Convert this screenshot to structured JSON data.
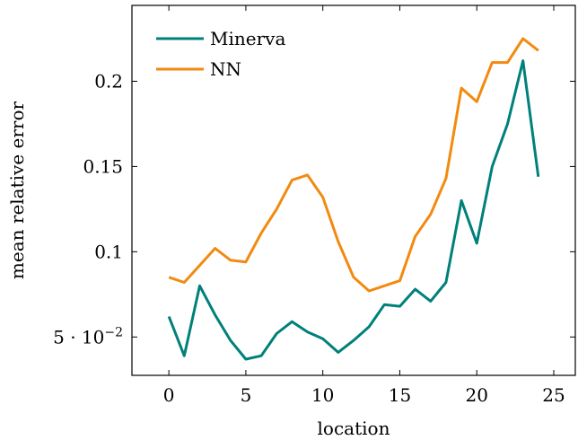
{
  "chart_data": {
    "type": "line",
    "title": "",
    "xlabel": "location",
    "ylabel": "mean relative error",
    "xlim": [
      -2.4,
      26.4
    ],
    "ylim": [
      0.0275,
      0.2445
    ],
    "xticks": [
      {
        "value": 0,
        "label": "0"
      },
      {
        "value": 5,
        "label": "5"
      },
      {
        "value": 10,
        "label": "10"
      },
      {
        "value": 15,
        "label": "15"
      },
      {
        "value": 20,
        "label": "20"
      },
      {
        "value": 25,
        "label": "25"
      }
    ],
    "yticks": [
      {
        "value": 0.05,
        "label": "5 · 10",
        "exp": "−2"
      },
      {
        "value": 0.1,
        "label": "0.1"
      },
      {
        "value": 0.15,
        "label": "0.15"
      },
      {
        "value": 0.2,
        "label": "0.2"
      }
    ],
    "grid": false,
    "legend_position": "top-left",
    "x": [
      0,
      1,
      2,
      3,
      4,
      5,
      6,
      7,
      8,
      9,
      10,
      11,
      12,
      13,
      14,
      15,
      16,
      17,
      18,
      19,
      20,
      21,
      22,
      23,
      24
    ],
    "series": [
      {
        "name": "Minerva",
        "color": "#00807a",
        "values": [
          0.062,
          0.039,
          0.08,
          0.063,
          0.048,
          0.037,
          0.039,
          0.052,
          0.059,
          0.053,
          0.049,
          0.041,
          0.048,
          0.056,
          0.069,
          0.068,
          0.078,
          0.071,
          0.082,
          0.13,
          0.105,
          0.15,
          0.175,
          0.212,
          0.144
        ]
      },
      {
        "name": "NN",
        "color": "#f28a10",
        "values": [
          0.085,
          0.082,
          0.092,
          0.102,
          0.095,
          0.094,
          0.111,
          0.125,
          0.142,
          0.145,
          0.132,
          0.106,
          0.085,
          0.077,
          0.08,
          0.083,
          0.109,
          0.122,
          0.143,
          0.196,
          0.188,
          0.211,
          0.211,
          0.225,
          0.218
        ]
      }
    ]
  }
}
